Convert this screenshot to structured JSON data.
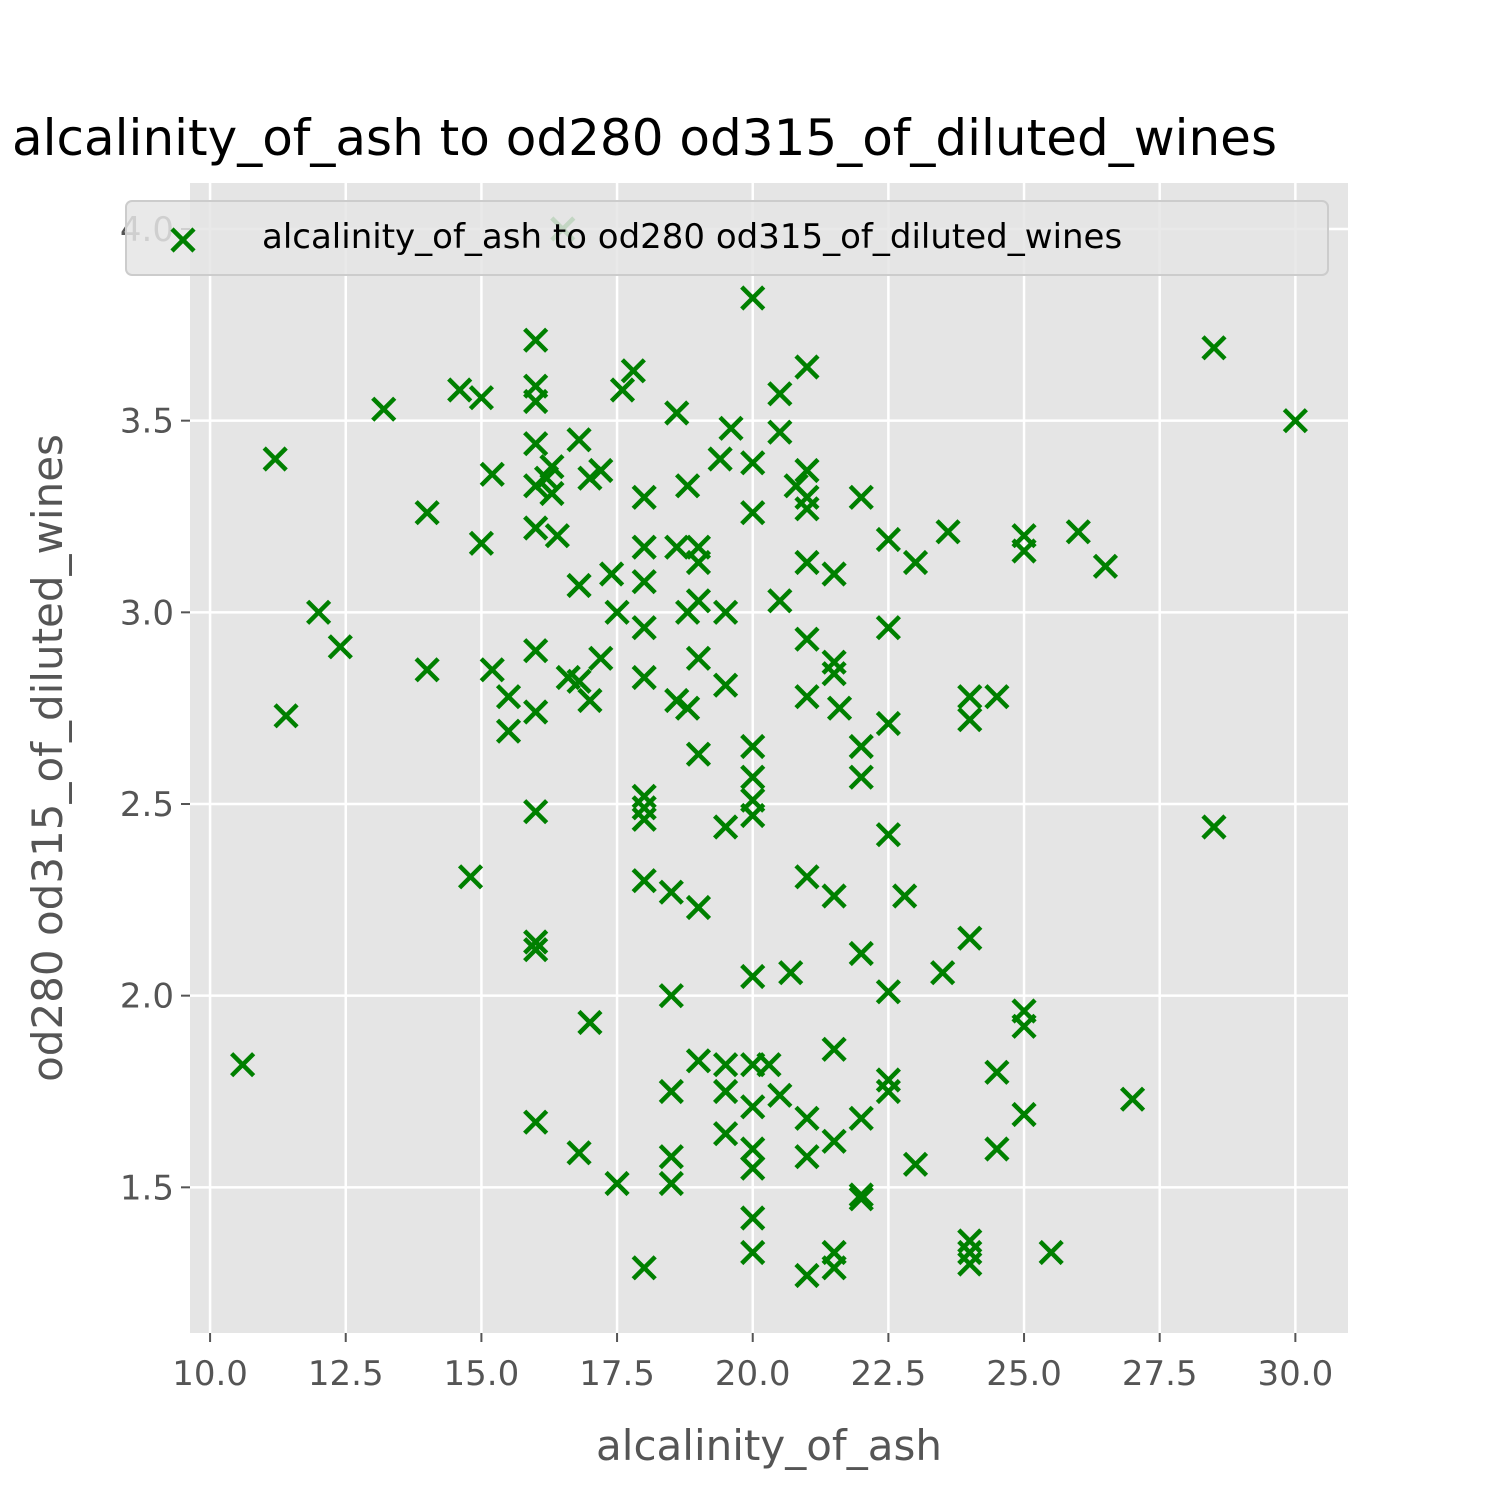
{
  "chart_data": {
    "type": "scatter",
    "title": "alcalinity_of_ash to od280 od315_of_diluted_wines",
    "xlabel": "alcalinity_of_ash",
    "ylabel": "od280 od315_of_diluted_wines",
    "xlim": [
      9.63,
      30.97
    ],
    "ylim": [
      1.12,
      4.12
    ],
    "xticks": [
      10.0,
      12.5,
      15.0,
      17.5,
      20.0,
      22.5,
      25.0,
      27.5,
      30.0
    ],
    "xtick_labels": [
      "10.0",
      "12.5",
      "15.0",
      "17.5",
      "20.0",
      "22.5",
      "25.0",
      "27.5",
      "30.0"
    ],
    "yticks": [
      1.5,
      2.0,
      2.5,
      3.0,
      3.5,
      4.0
    ],
    "ytick_labels": [
      "1.5",
      "2.0",
      "2.5",
      "3.0",
      "3.5",
      "4.0"
    ],
    "grid": true,
    "legend": "top",
    "marker": "x",
    "colors": {
      "marker": "#008000",
      "panel": "#e5e5e5",
      "grid": "#ffffff"
    },
    "series": [
      {
        "name": "alcalinity_of_ash to od280 od315_of_diluted_wines",
        "points": [
          [
            10.6,
            1.82
          ],
          [
            11.2,
            3.4
          ],
          [
            11.4,
            2.73
          ],
          [
            12.0,
            3.0
          ],
          [
            12.4,
            2.91
          ],
          [
            13.2,
            3.53
          ],
          [
            14.0,
            3.26
          ],
          [
            14.0,
            2.85
          ],
          [
            14.6,
            3.58
          ],
          [
            14.8,
            2.31
          ],
          [
            15.0,
            3.56
          ],
          [
            15.0,
            3.18
          ],
          [
            15.2,
            3.36
          ],
          [
            15.2,
            2.85
          ],
          [
            15.5,
            2.78
          ],
          [
            15.5,
            2.69
          ],
          [
            16.0,
            3.71
          ],
          [
            16.0,
            3.59
          ],
          [
            16.0,
            3.55
          ],
          [
            16.0,
            3.44
          ],
          [
            16.0,
            3.33
          ],
          [
            16.0,
            3.22
          ],
          [
            16.0,
            2.9
          ],
          [
            16.0,
            2.74
          ],
          [
            16.0,
            2.48
          ],
          [
            16.0,
            2.14
          ],
          [
            16.0,
            2.12
          ],
          [
            16.0,
            1.67
          ],
          [
            16.3,
            3.38
          ],
          [
            16.3,
            3.31
          ],
          [
            16.2,
            3.35
          ],
          [
            16.4,
            3.2
          ],
          [
            16.5,
            4.0
          ],
          [
            16.6,
            2.83
          ],
          [
            16.8,
            3.45
          ],
          [
            16.8,
            3.07
          ],
          [
            16.8,
            2.82
          ],
          [
            16.8,
            1.59
          ],
          [
            17.0,
            3.35
          ],
          [
            17.0,
            2.77
          ],
          [
            17.0,
            1.93
          ],
          [
            17.2,
            3.37
          ],
          [
            17.2,
            2.88
          ],
          [
            17.4,
            3.1
          ],
          [
            17.5,
            3.0
          ],
          [
            17.5,
            1.51
          ],
          [
            17.6,
            3.58
          ],
          [
            17.8,
            3.63
          ],
          [
            18.0,
            3.3
          ],
          [
            18.0,
            3.17
          ],
          [
            18.0,
            3.08
          ],
          [
            18.0,
            2.96
          ],
          [
            18.0,
            2.83
          ],
          [
            18.0,
            2.52
          ],
          [
            18.0,
            2.49
          ],
          [
            18.0,
            2.46
          ],
          [
            18.0,
            2.3
          ],
          [
            18.0,
            1.29
          ],
          [
            18.5,
            2.27
          ],
          [
            18.5,
            2.0
          ],
          [
            18.5,
            1.75
          ],
          [
            18.5,
            1.58
          ],
          [
            18.5,
            1.51
          ],
          [
            18.6,
            3.52
          ],
          [
            18.6,
            3.17
          ],
          [
            18.6,
            2.77
          ],
          [
            18.8,
            3.33
          ],
          [
            18.8,
            3.0
          ],
          [
            18.8,
            2.75
          ],
          [
            19.0,
            3.17
          ],
          [
            19.0,
            3.13
          ],
          [
            19.0,
            3.03
          ],
          [
            19.0,
            2.88
          ],
          [
            19.0,
            2.63
          ],
          [
            19.0,
            2.23
          ],
          [
            19.0,
            1.83
          ],
          [
            19.4,
            3.4
          ],
          [
            19.5,
            3.0
          ],
          [
            19.5,
            2.81
          ],
          [
            19.5,
            2.44
          ],
          [
            19.5,
            1.82
          ],
          [
            19.5,
            1.75
          ],
          [
            19.5,
            1.64
          ],
          [
            19.6,
            3.48
          ],
          [
            20.0,
            3.82
          ],
          [
            20.0,
            3.39
          ],
          [
            20.0,
            3.26
          ],
          [
            20.0,
            2.65
          ],
          [
            20.0,
            2.57
          ],
          [
            20.0,
            2.51
          ],
          [
            20.0,
            2.47
          ],
          [
            20.0,
            2.05
          ],
          [
            20.0,
            1.82
          ],
          [
            20.0,
            1.71
          ],
          [
            20.0,
            1.6
          ],
          [
            20.0,
            1.55
          ],
          [
            20.0,
            1.42
          ],
          [
            20.0,
            1.33
          ],
          [
            20.3,
            1.82
          ],
          [
            20.5,
            3.57
          ],
          [
            20.5,
            3.47
          ],
          [
            20.5,
            3.03
          ],
          [
            20.5,
            1.74
          ],
          [
            20.7,
            2.06
          ],
          [
            20.8,
            3.33
          ],
          [
            21.0,
            3.64
          ],
          [
            21.0,
            3.37
          ],
          [
            21.0,
            3.3
          ],
          [
            21.0,
            3.27
          ],
          [
            21.0,
            3.13
          ],
          [
            21.0,
            2.93
          ],
          [
            21.0,
            2.78
          ],
          [
            21.0,
            2.31
          ],
          [
            21.0,
            1.68
          ],
          [
            21.0,
            1.58
          ],
          [
            21.0,
            1.27
          ],
          [
            21.5,
            3.1
          ],
          [
            21.5,
            2.87
          ],
          [
            21.5,
            2.84
          ],
          [
            21.5,
            2.26
          ],
          [
            21.5,
            1.86
          ],
          [
            21.5,
            1.62
          ],
          [
            21.5,
            1.33
          ],
          [
            21.5,
            1.29
          ],
          [
            21.6,
            2.75
          ],
          [
            22.0,
            3.3
          ],
          [
            22.0,
            2.65
          ],
          [
            22.0,
            2.57
          ],
          [
            22.0,
            2.11
          ],
          [
            22.0,
            1.68
          ],
          [
            22.0,
            1.48
          ],
          [
            22.0,
            1.47
          ],
          [
            22.5,
            3.19
          ],
          [
            22.5,
            2.96
          ],
          [
            22.5,
            2.71
          ],
          [
            22.5,
            2.42
          ],
          [
            22.5,
            2.01
          ],
          [
            22.5,
            1.78
          ],
          [
            22.5,
            1.75
          ],
          [
            22.8,
            2.26
          ],
          [
            23.0,
            3.13
          ],
          [
            23.0,
            1.56
          ],
          [
            23.5,
            2.06
          ],
          [
            23.6,
            3.21
          ],
          [
            24.0,
            2.78
          ],
          [
            24.0,
            2.72
          ],
          [
            24.0,
            2.15
          ],
          [
            24.0,
            1.36
          ],
          [
            24.0,
            1.33
          ],
          [
            24.0,
            1.3
          ],
          [
            24.5,
            2.78
          ],
          [
            24.5,
            1.8
          ],
          [
            24.5,
            1.6
          ],
          [
            25.0,
            3.2
          ],
          [
            25.0,
            3.16
          ],
          [
            25.0,
            1.96
          ],
          [
            25.0,
            1.92
          ],
          [
            25.0,
            1.69
          ],
          [
            25.5,
            1.33
          ],
          [
            26.0,
            3.21
          ],
          [
            26.5,
            3.12
          ],
          [
            27.0,
            1.73
          ],
          [
            28.5,
            3.69
          ],
          [
            28.5,
            2.44
          ],
          [
            30.0,
            3.5
          ]
        ]
      }
    ]
  }
}
